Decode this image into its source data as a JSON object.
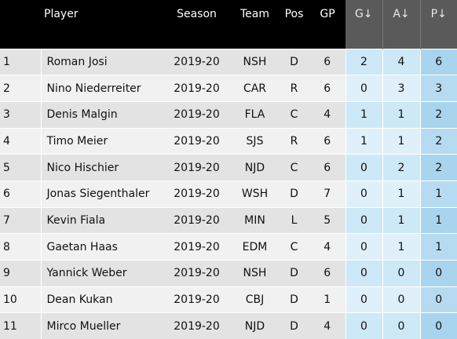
{
  "table": {
    "headers": {
      "player": "Player",
      "season": "Season",
      "team": "Team",
      "pos": "Pos",
      "gp": "GP",
      "g": "G↓",
      "a": "A↓",
      "p": "P↓"
    },
    "rows": [
      {
        "rank": "1",
        "player": "Roman Josi",
        "season": "2019-20",
        "team": "NSH",
        "pos": "D",
        "gp": "6",
        "g": "2",
        "a": "4",
        "p": "6"
      },
      {
        "rank": "2",
        "player": "Nino Niederreiter",
        "season": "2019-20",
        "team": "CAR",
        "pos": "R",
        "gp": "6",
        "g": "0",
        "a": "3",
        "p": "3"
      },
      {
        "rank": "3",
        "player": "Denis Malgin",
        "season": "2019-20",
        "team": "FLA",
        "pos": "C",
        "gp": "4",
        "g": "1",
        "a": "1",
        "p": "2"
      },
      {
        "rank": "4",
        "player": "Timo Meier",
        "season": "2019-20",
        "team": "SJS",
        "pos": "R",
        "gp": "6",
        "g": "1",
        "a": "1",
        "p": "2"
      },
      {
        "rank": "5",
        "player": "Nico Hischier",
        "season": "2019-20",
        "team": "NJD",
        "pos": "C",
        "gp": "6",
        "g": "0",
        "a": "2",
        "p": "2"
      },
      {
        "rank": "6",
        "player": "Jonas Siegenthaler",
        "season": "2019-20",
        "team": "WSH",
        "pos": "D",
        "gp": "7",
        "g": "0",
        "a": "1",
        "p": "1"
      },
      {
        "rank": "7",
        "player": "Kevin Fiala",
        "season": "2019-20",
        "team": "MIN",
        "pos": "L",
        "gp": "5",
        "g": "0",
        "a": "1",
        "p": "1"
      },
      {
        "rank": "8",
        "player": "Gaetan Haas",
        "season": "2019-20",
        "team": "EDM",
        "pos": "C",
        "gp": "4",
        "g": "0",
        "a": "1",
        "p": "1"
      },
      {
        "rank": "9",
        "player": "Yannick Weber",
        "season": "2019-20",
        "team": "NSH",
        "pos": "D",
        "gp": "6",
        "g": "0",
        "a": "0",
        "p": "0"
      },
      {
        "rank": "10",
        "player": "Dean Kukan",
        "season": "2019-20",
        "team": "CBJ",
        "pos": "D",
        "gp": "1",
        "g": "0",
        "a": "0",
        "p": "0"
      },
      {
        "rank": "11",
        "player": "Mirco Mueller",
        "season": "2019-20",
        "team": "NJD",
        "pos": "D",
        "gp": "4",
        "g": "0",
        "a": "0",
        "p": "0"
      }
    ]
  },
  "colors": {
    "header_bg": "#000000",
    "sorted_header_bg": "#5a5a5a",
    "stat_cell_bg": "#cde8f6",
    "points_cell_bg": "#a9d4ee"
  }
}
